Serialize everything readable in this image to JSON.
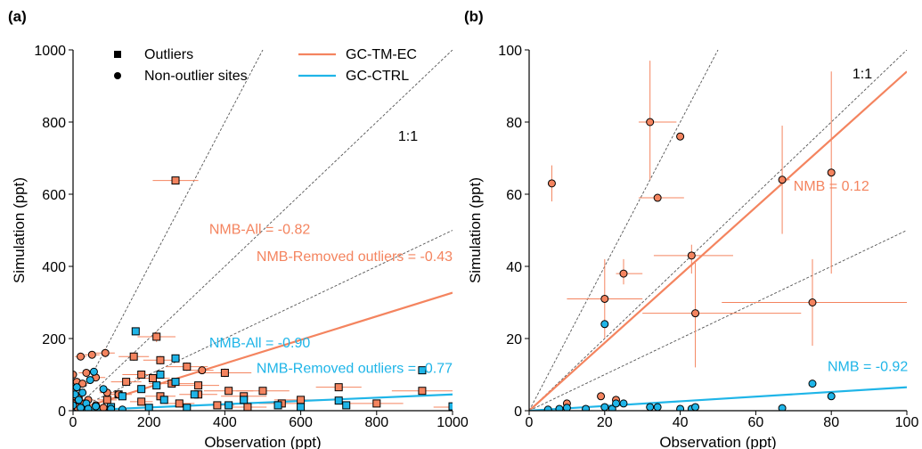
{
  "colors": {
    "tmec": "#F4845F",
    "ctrl": "#1FB5E8",
    "axis": "#000000",
    "ref": "#555555"
  },
  "chart_data": [
    {
      "type": "scatter",
      "panel_label": "(a)",
      "xlabel": "Observation (ppt)",
      "ylabel": "Simulation (ppt)",
      "xlim": [
        0,
        1000
      ],
      "ylim": [
        0,
        1000
      ],
      "xticks": [
        0,
        200,
        400,
        600,
        800,
        1000
      ],
      "yticks": [
        0,
        200,
        400,
        600,
        800,
        1000
      ],
      "grid": false,
      "legend": {
        "position": "top-left",
        "entries": [
          {
            "label": "Outliers",
            "marker": "square"
          },
          {
            "label": "Non-outlier sites",
            "marker": "circle"
          },
          {
            "label": "GC-TM-EC",
            "line": "tmec"
          },
          {
            "label": "GC-CTRL",
            "line": "ctrl"
          }
        ]
      },
      "reference_lines": {
        "slopes": [
          2,
          1,
          0.5
        ],
        "label": "1:1"
      },
      "annotations": [
        {
          "text": "NMB-All = -0.82",
          "series": "tmec",
          "x": 625,
          "y": 490,
          "anchor": "end"
        },
        {
          "text": "NMB-Removed outliers = -0.43",
          "series": "tmec",
          "x": 1000,
          "y": 415,
          "anchor": "end"
        },
        {
          "text": "NMB-All = -0.90",
          "series": "ctrl",
          "x": 625,
          "y": 175,
          "anchor": "end"
        },
        {
          "text": "NMB-Removed outliers = -0.77",
          "series": "ctrl",
          "x": 1000,
          "y": 105,
          "anchor": "end"
        }
      ],
      "fit_lines": [
        {
          "series": "tmec",
          "x": [
            0,
            1000
          ],
          "y": [
            0,
            327
          ]
        },
        {
          "series": "ctrl",
          "x": [
            0,
            1000
          ],
          "y": [
            0,
            45
          ]
        }
      ],
      "series": [
        {
          "name": "GC-TM-EC",
          "key": "tmec",
          "marker": "square",
          "points": [
            [
              270,
              638
            ],
            [
              220,
              205
            ],
            [
              160,
              150
            ],
            [
              230,
              140
            ],
            [
              300,
              122
            ],
            [
              400,
              105
            ],
            [
              180,
              100
            ],
            [
              210,
              90
            ],
            [
              140,
              80
            ],
            [
              260,
              75
            ],
            [
              330,
              70
            ],
            [
              410,
              55
            ],
            [
              500,
              55
            ],
            [
              700,
              65
            ],
            [
              920,
              55
            ],
            [
              120,
              45
            ],
            [
              230,
              40
            ],
            [
              330,
              45
            ],
            [
              450,
              40
            ],
            [
              600,
              30
            ],
            [
              1000,
              10
            ],
            [
              90,
              30
            ],
            [
              180,
              25
            ],
            [
              280,
              20
            ],
            [
              380,
              15
            ],
            [
              460,
              10
            ],
            [
              550,
              20
            ],
            [
              800,
              20
            ]
          ],
          "xerr": [
            60,
            50,
            40,
            45,
            55,
            70,
            50,
            45,
            40,
            60,
            55,
            65,
            70,
            60,
            80,
            35,
            40,
            50,
            60,
            70,
            50,
            25,
            30,
            40,
            45,
            50,
            60,
            70
          ],
          "yerr": [
            10,
            15,
            12,
            12,
            12,
            12,
            10,
            10,
            10,
            10,
            10,
            10,
            10,
            10,
            10,
            8,
            8,
            8,
            8,
            8,
            8,
            6,
            6,
            6,
            6,
            6,
            6,
            6
          ]
        },
        {
          "name": "GC-TM-EC",
          "key": "tmec",
          "marker": "circle",
          "points": [
            [
              85,
              160
            ],
            [
              50,
              155
            ],
            [
              20,
              150
            ],
            [
              35,
              105
            ],
            [
              60,
              92
            ],
            [
              340,
              112
            ],
            [
              0,
              100
            ],
            [
              10,
              80
            ],
            [
              25,
              75
            ],
            [
              90,
              50
            ],
            [
              120,
              45
            ],
            [
              5,
              40
            ],
            [
              15,
              35
            ],
            [
              40,
              30
            ],
            [
              0,
              20
            ],
            [
              30,
              20
            ],
            [
              60,
              15
            ],
            [
              10,
              10
            ],
            [
              80,
              8
            ]
          ],
          "xerr": [
            25,
            20,
            15,
            20,
            25,
            30,
            10,
            10,
            15,
            20,
            25,
            10,
            10,
            15,
            10,
            15,
            20,
            10,
            20
          ],
          "yerr": [
            12,
            10,
            10,
            10,
            10,
            10,
            8,
            8,
            8,
            6,
            6,
            6,
            6,
            6,
            5,
            5,
            5,
            4,
            4
          ]
        },
        {
          "name": "GC-CTRL",
          "key": "ctrl",
          "marker": "square",
          "points": [
            [
              165,
              220
            ],
            [
              270,
              145
            ],
            [
              230,
              100
            ],
            [
              270,
              80
            ],
            [
              220,
              70
            ],
            [
              320,
              45
            ],
            [
              450,
              30
            ],
            [
              180,
              60
            ],
            [
              130,
              40
            ],
            [
              240,
              30
            ],
            [
              410,
              15
            ],
            [
              540,
              15
            ],
            [
              720,
              15
            ],
            [
              920,
              112
            ],
            [
              1000,
              12
            ],
            [
              100,
              10
            ],
            [
              200,
              8
            ],
            [
              300,
              8
            ],
            [
              600,
              10
            ],
            [
              700,
              28
            ]
          ]
        },
        {
          "name": "GC-CTRL",
          "key": "ctrl",
          "marker": "circle",
          "points": [
            [
              55,
              108
            ],
            [
              45,
              85
            ],
            [
              80,
              60
            ],
            [
              10,
              65
            ],
            [
              25,
              50
            ],
            [
              5,
              45
            ],
            [
              15,
              30
            ],
            [
              35,
              20
            ],
            [
              0,
              15
            ],
            [
              60,
              12
            ],
            [
              20,
              8
            ],
            [
              100,
              5
            ],
            [
              40,
              5
            ],
            [
              130,
              3
            ]
          ]
        }
      ]
    },
    {
      "type": "scatter",
      "panel_label": "(b)",
      "xlabel": "Observation (ppt)",
      "ylabel": "Simulation (ppt)",
      "xlim": [
        0,
        100
      ],
      "ylim": [
        0,
        100
      ],
      "xticks": [
        0,
        20,
        40,
        60,
        80,
        100
      ],
      "yticks": [
        0,
        20,
        40,
        60,
        80,
        100
      ],
      "grid": false,
      "reference_lines": {
        "slopes": [
          2,
          1,
          0.5
        ],
        "label": "1:1"
      },
      "annotations": [
        {
          "text": "NMB = 0.12",
          "series": "tmec",
          "x": 70,
          "y": 61
        },
        {
          "text": "NMB = -0.92",
          "series": "ctrl",
          "x": 79,
          "y": 11
        }
      ],
      "fit_lines": [
        {
          "series": "tmec",
          "x": [
            0,
            100
          ],
          "y": [
            0,
            94
          ]
        },
        {
          "series": "ctrl",
          "x": [
            0,
            100
          ],
          "y": [
            0,
            6.5
          ]
        }
      ],
      "series": [
        {
          "name": "GC-TM-EC",
          "key": "tmec",
          "marker": "circle",
          "points": [
            [
              6,
              63
            ],
            [
              32,
              80
            ],
            [
              40,
              76
            ],
            [
              34,
              59
            ],
            [
              20,
              31
            ],
            [
              25,
              38
            ],
            [
              43,
              43
            ],
            [
              44,
              27
            ],
            [
              67,
              64
            ],
            [
              80,
              66
            ],
            [
              75,
              30
            ],
            [
              10,
              2
            ],
            [
              19,
              4
            ],
            [
              23,
              3
            ]
          ],
          "xerr": [
            [
              0,
              0
            ],
            [
              3,
              7
            ],
            [
              0,
              0
            ],
            [
              5,
              7
            ],
            [
              10,
              10
            ],
            [
              2,
              5
            ],
            [
              10,
              11
            ],
            [
              14,
              28
            ],
            [
              0,
              2
            ],
            [
              0,
              0
            ],
            [
              24,
              25
            ],
            [
              0,
              0
            ],
            [
              0,
              0
            ],
            [
              0,
              0
            ]
          ],
          "yerr": [
            [
              5,
              5
            ],
            [
              16,
              17
            ],
            [
              0,
              0
            ],
            [
              0,
              0
            ],
            [
              11,
              11
            ],
            [
              3,
              4
            ],
            [
              5,
              3
            ],
            [
              15,
              14
            ],
            [
              15,
              15
            ],
            [
              28,
              28
            ],
            [
              12,
              12
            ],
            [
              0,
              0
            ],
            [
              1,
              1
            ],
            [
              0,
              0
            ]
          ]
        },
        {
          "name": "GC-CTRL",
          "key": "ctrl",
          "marker": "circle",
          "points": [
            [
              5,
              0.3
            ],
            [
              8,
              0.5
            ],
            [
              10,
              0.8
            ],
            [
              15,
              0.5
            ],
            [
              20,
              24
            ],
            [
              20,
              1
            ],
            [
              22,
              0.5
            ],
            [
              23,
              2
            ],
            [
              25,
              2
            ],
            [
              32,
              1
            ],
            [
              34,
              1
            ],
            [
              43,
              0.5
            ],
            [
              44,
              1
            ],
            [
              40,
              0.5
            ],
            [
              67,
              0.7
            ],
            [
              75,
              7.5
            ],
            [
              80,
              4
            ]
          ]
        }
      ]
    }
  ]
}
